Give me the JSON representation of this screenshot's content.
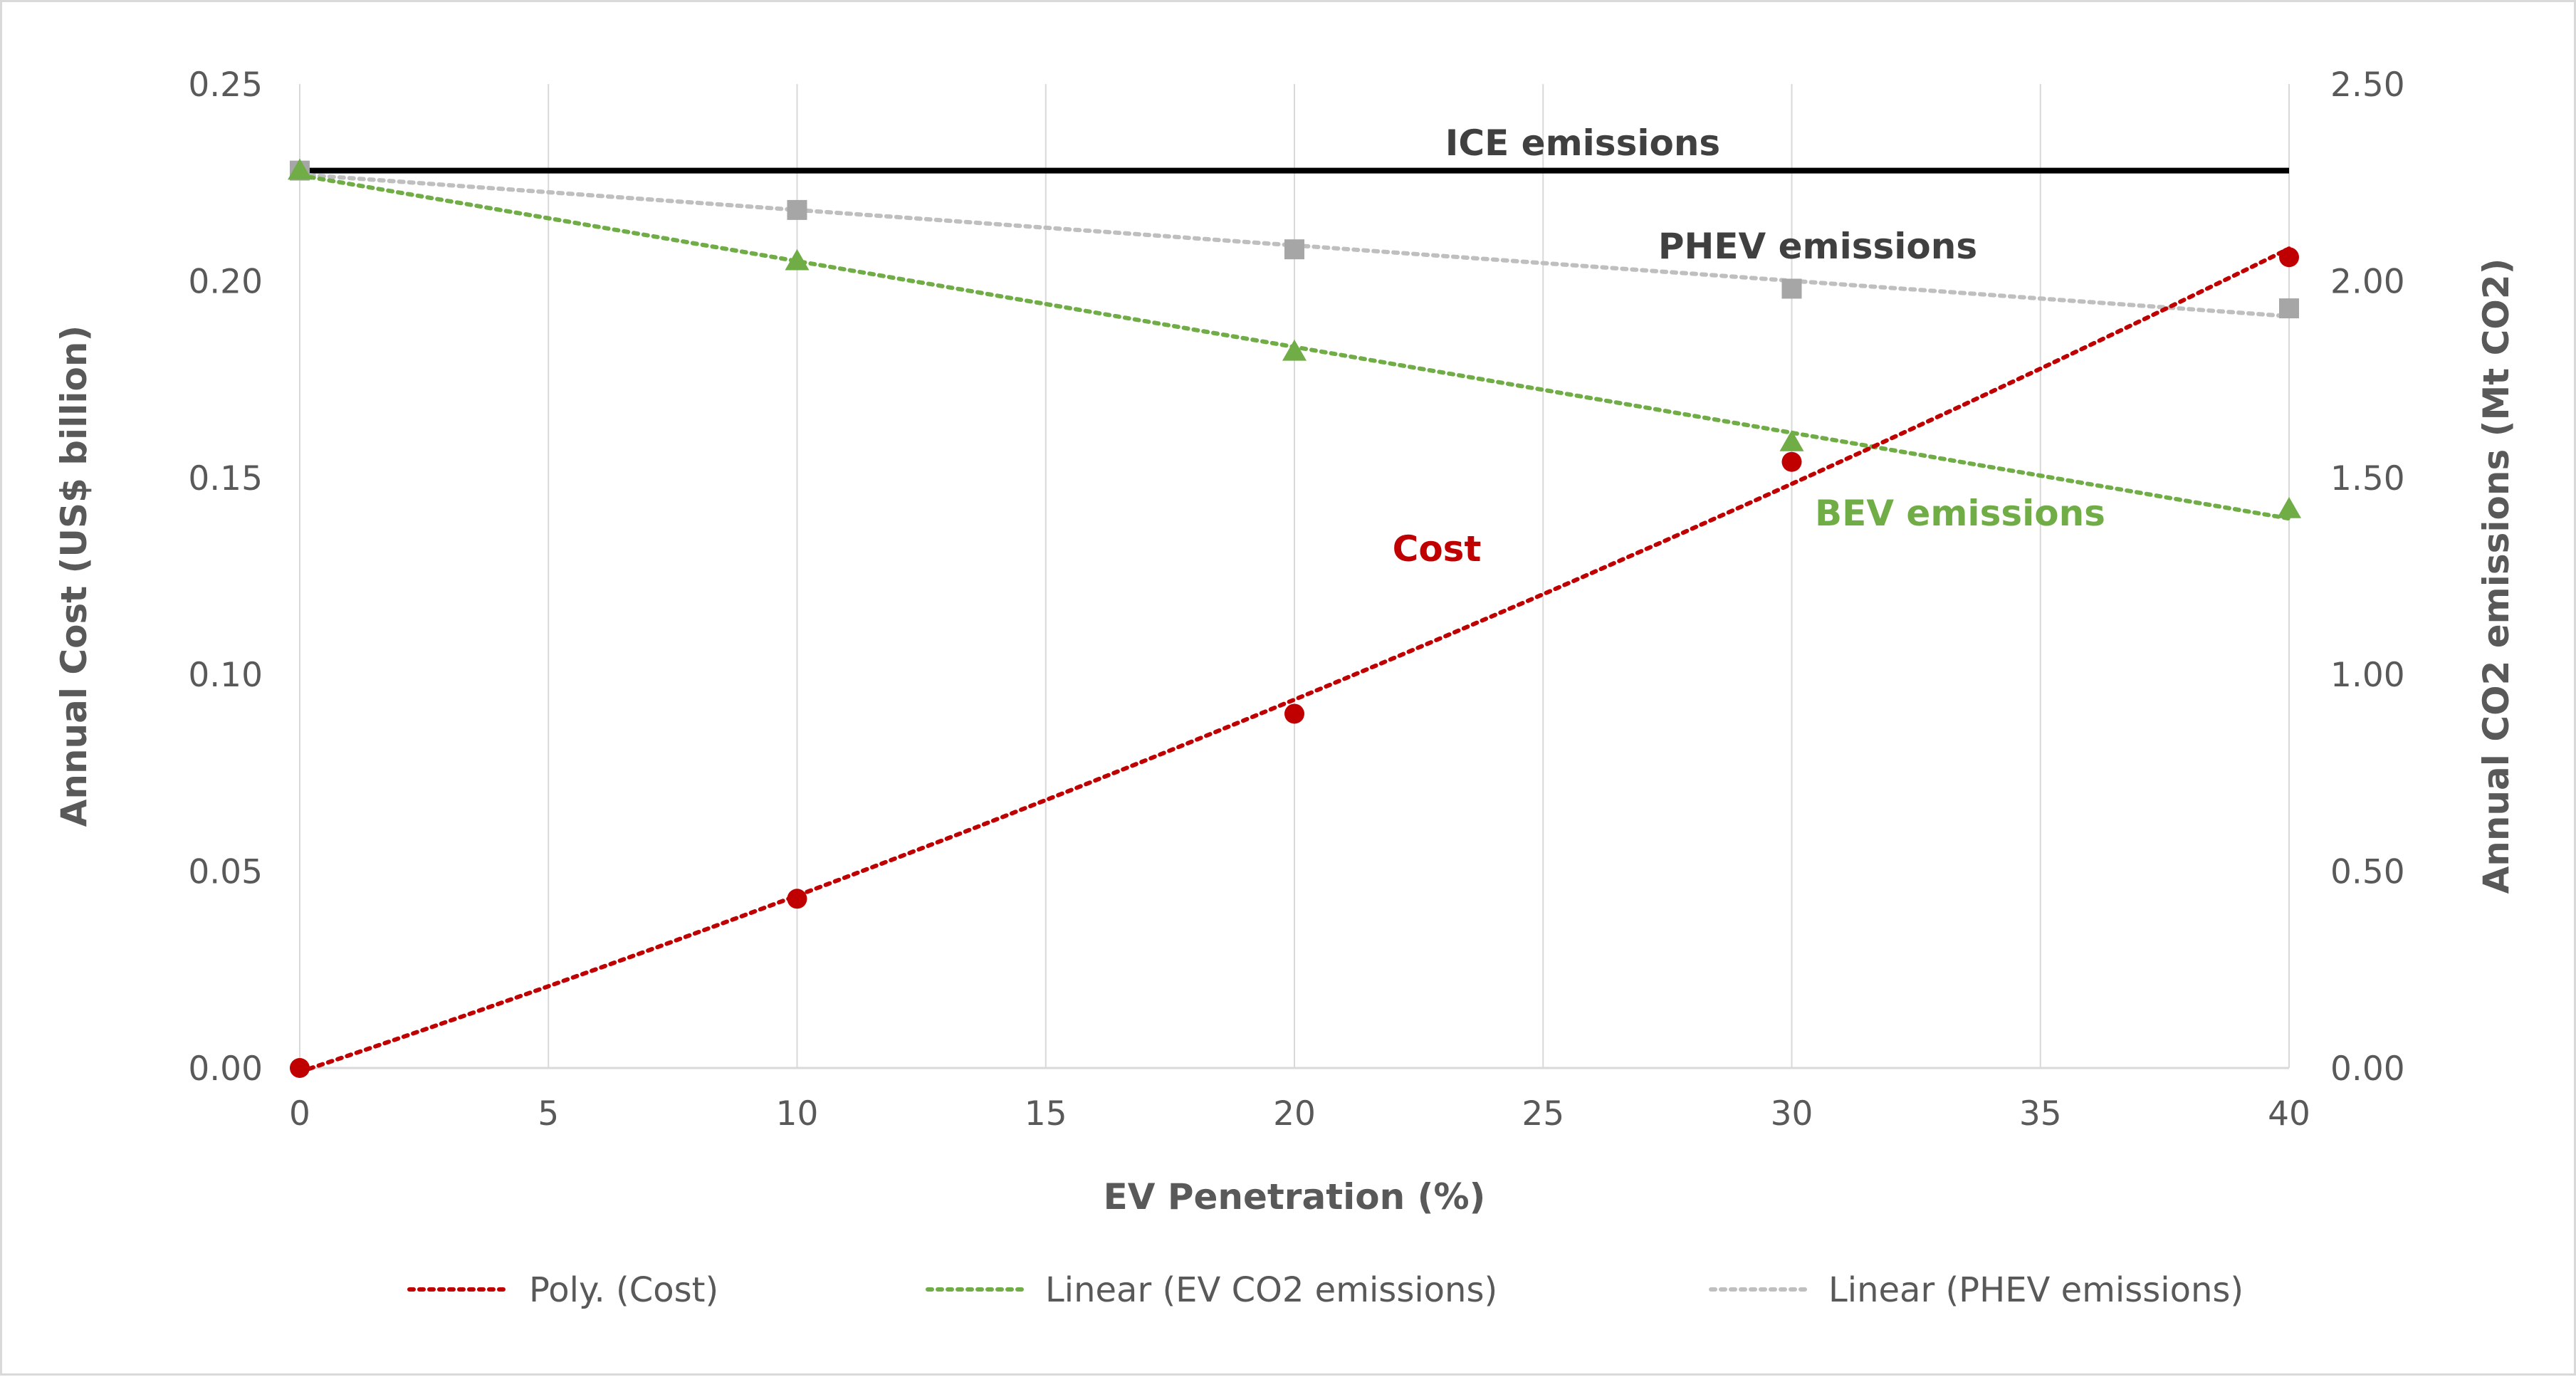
{
  "chart_data": {
    "type": "line",
    "title": "",
    "xlabel": "EV Penetration (%)",
    "ylabel_left": "Annual Cost (US$ billion)",
    "ylabel_right": "Annual CO2 emissions (Mt CO2)",
    "xlim": [
      0,
      40
    ],
    "ylim_left": [
      0,
      0.25
    ],
    "ylim_right": [
      0,
      2.5
    ],
    "x_ticks": [
      "0",
      "5",
      "10",
      "15",
      "20",
      "25",
      "30",
      "35",
      "40"
    ],
    "y_left_ticks": [
      "0.00",
      "0.05",
      "0.10",
      "0.15",
      "0.20",
      "0.25"
    ],
    "y_right_ticks": [
      "0.00",
      "0.50",
      "1.00",
      "1.50",
      "2.00",
      "2.50"
    ],
    "grid": "vertical",
    "legend_position": "bottom",
    "colors": {
      "cost": "#c00000",
      "bev": "#70ad47",
      "phev": "#a6a6a6",
      "phev_trend": "#bfbfbf",
      "ice": "#000000",
      "grid": "#d9d9d9",
      "text": "#595959"
    },
    "series": [
      {
        "name": "Cost",
        "axis": "left",
        "marker": "circle",
        "x": [
          0,
          10,
          20,
          30,
          40
        ],
        "values": [
          0.0,
          0.043,
          0.09,
          0.154,
          0.206
        ],
        "trendline": "poly"
      },
      {
        "name": "BEV emissions",
        "axis": "right",
        "marker": "triangle",
        "x": [
          0,
          10,
          20,
          30,
          40
        ],
        "values": [
          2.28,
          2.05,
          1.82,
          1.59,
          1.42
        ],
        "trendline": "linear"
      },
      {
        "name": "PHEV emissions",
        "axis": "right",
        "marker": "square",
        "x": [
          0,
          10,
          20,
          30,
          40
        ],
        "values": [
          2.28,
          2.18,
          2.08,
          1.98,
          1.93
        ],
        "trendline": "linear"
      },
      {
        "name": "ICE emissions",
        "axis": "right",
        "marker": "none",
        "x": [
          0,
          40
        ],
        "values": [
          2.28,
          2.28
        ]
      }
    ],
    "annotations": [
      {
        "text": "ICE emissions",
        "color": "#404040"
      },
      {
        "text": "PHEV emissions",
        "color": "#404040"
      },
      {
        "text": "BEV emissions",
        "color": "#70ad47"
      },
      {
        "text": "Cost",
        "color": "#c00000"
      }
    ],
    "legend": [
      {
        "label": "Poly. (Cost)",
        "color": "#c00000"
      },
      {
        "label": "Linear (EV CO2 emissions)",
        "color": "#70ad47"
      },
      {
        "label": "Linear (PHEV emissions)",
        "color": "#bfbfbf"
      }
    ]
  }
}
